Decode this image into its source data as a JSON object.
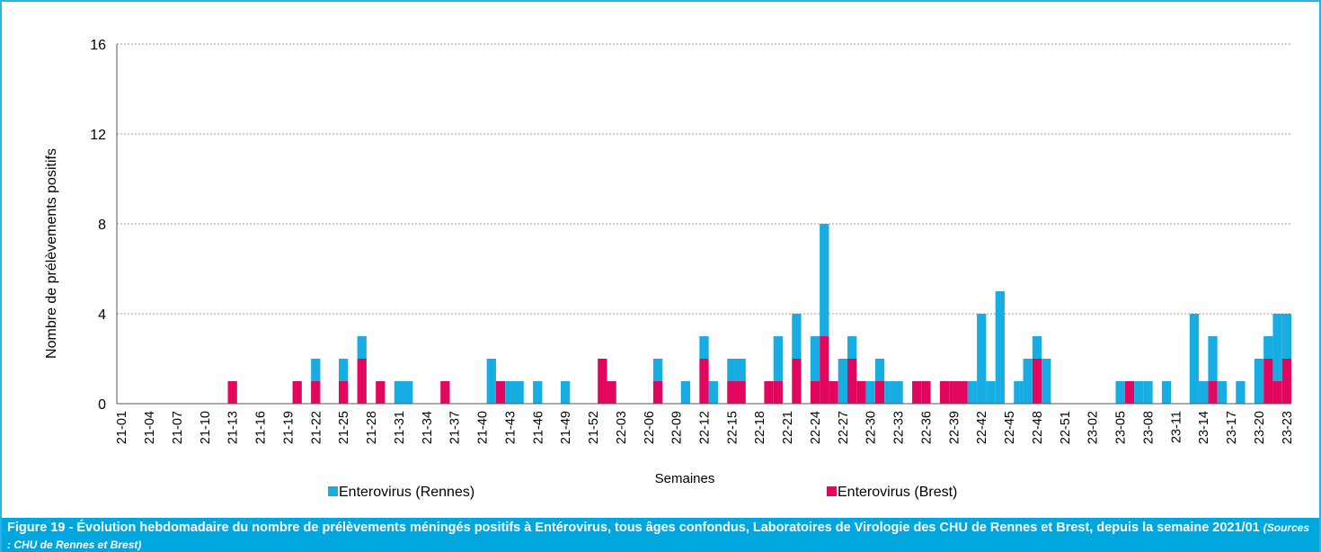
{
  "chart_data": {
    "type": "stacked-bar",
    "x_label": "Semaines",
    "y_label": "Nombre de prélèvements positifs",
    "caption": "Figure 19 - Évolution hebdomadaire du nombre de prélèvements méningés positifs à Entérovirus, tous âges confondus, Laboratoires de Virologie des CHU de Rennes et Brest, depuis la semaine 2021/01",
    "source": "(Sources : CHU de Rennes et Brest)",
    "ylim": [
      0,
      16
    ],
    "yticks": [
      0,
      4,
      8,
      12,
      16
    ],
    "grid": true,
    "categories": [
      "21-01",
      null,
      null,
      "21-04",
      null,
      null,
      "21-07",
      null,
      null,
      "21-10",
      null,
      null,
      "21-13",
      null,
      null,
      "21-16",
      null,
      null,
      "21-19",
      null,
      null,
      "21-22",
      null,
      null,
      "21-25",
      null,
      null,
      "21-28",
      null,
      null,
      "21-31",
      null,
      null,
      "21-34",
      null,
      null,
      "21-37",
      null,
      null,
      "21-40",
      null,
      null,
      "21-43",
      null,
      null,
      "21-46",
      null,
      null,
      "21-49",
      null,
      null,
      "21-52",
      null,
      null,
      "22-03",
      null,
      null,
      "22-06",
      null,
      null,
      "22-09",
      null,
      null,
      "22-12",
      null,
      null,
      "22-15",
      null,
      null,
      "22-18",
      null,
      null,
      "22-21",
      null,
      null,
      "22-24",
      null,
      null,
      "22-27",
      null,
      null,
      "22-30",
      null,
      null,
      "22-33",
      null,
      null,
      "22-36",
      null,
      null,
      "22-39",
      null,
      null,
      "22-42",
      null,
      null,
      "22-45",
      null,
      null,
      "22-48",
      null,
      null,
      "22-51",
      null,
      null,
      "23-02",
      null,
      null,
      "23-05",
      null,
      null,
      "23-08",
      null,
      null,
      "23-11",
      null,
      null,
      "23-14",
      null,
      null,
      "23-17",
      null,
      null,
      "23-20",
      null,
      null,
      "23-23"
    ],
    "series": [
      {
        "name": "Enterovirus (Rennes)",
        "color": "#17ade2",
        "values": [
          0,
          0,
          0,
          0,
          0,
          0,
          0,
          0,
          0,
          0,
          0,
          0,
          0,
          0,
          0,
          0,
          0,
          0,
          0,
          0,
          0,
          1,
          0,
          0,
          1,
          0,
          1,
          0,
          0,
          0,
          1,
          1,
          0,
          0,
          0,
          0,
          0,
          0,
          0,
          0,
          2,
          0,
          1,
          1,
          0,
          1,
          0,
          0,
          1,
          0,
          0,
          0,
          0,
          0,
          0,
          0,
          0,
          0,
          1,
          0,
          0,
          1,
          0,
          1,
          1,
          0,
          1,
          1,
          0,
          0,
          0,
          2,
          0,
          2,
          0,
          2,
          5,
          0,
          2,
          1,
          0,
          1,
          1,
          1,
          1,
          0,
          0,
          0,
          0,
          0,
          0,
          0,
          1,
          4,
          1,
          5,
          0,
          1,
          2,
          1,
          2,
          0,
          0,
          0,
          0,
          0,
          0,
          0,
          1,
          0,
          1,
          1,
          0,
          1,
          0,
          0,
          4,
          1,
          2,
          1,
          0,
          1,
          0,
          2,
          1,
          3,
          2
        ]
      },
      {
        "name": "Enterovirus (Brest)",
        "color": "#e3065f",
        "values": [
          0,
          0,
          0,
          0,
          0,
          0,
          0,
          0,
          0,
          0,
          0,
          0,
          1,
          0,
          0,
          0,
          0,
          0,
          0,
          1,
          0,
          1,
          0,
          0,
          1,
          0,
          2,
          0,
          1,
          0,
          0,
          0,
          0,
          0,
          0,
          1,
          0,
          0,
          0,
          0,
          0,
          1,
          0,
          0,
          0,
          0,
          0,
          0,
          0,
          0,
          0,
          0,
          2,
          1,
          0,
          0,
          0,
          0,
          1,
          0,
          0,
          0,
          0,
          2,
          0,
          0,
          1,
          1,
          0,
          0,
          1,
          1,
          0,
          2,
          0,
          1,
          3,
          1,
          0,
          2,
          1,
          0,
          1,
          0,
          0,
          0,
          1,
          1,
          0,
          1,
          1,
          1,
          0,
          0,
          0,
          0,
          0,
          0,
          0,
          2,
          0,
          0,
          0,
          0,
          0,
          0,
          0,
          0,
          0,
          1,
          0,
          0,
          0,
          0,
          0,
          0,
          0,
          0,
          1,
          0,
          0,
          0,
          0,
          0,
          2,
          1,
          2
        ]
      }
    ]
  }
}
